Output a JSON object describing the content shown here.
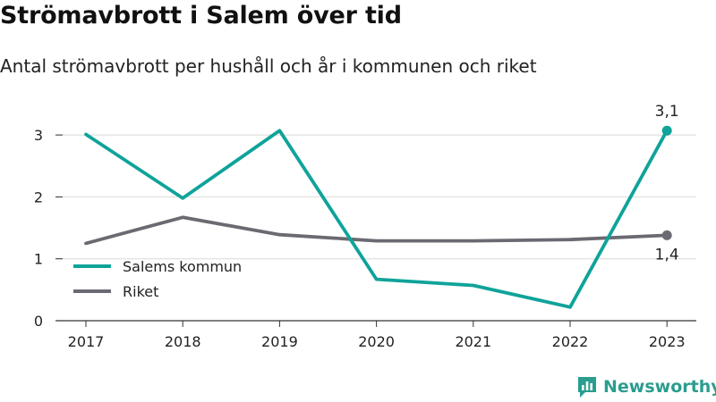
{
  "title": "Strömavbrott i Salem över tid",
  "subtitle": "Antal strömavbrott per hushåll och år i kommunen och riket",
  "brand": {
    "name": "Newsworthy",
    "color": "#2a9d8f"
  },
  "chart_data": {
    "type": "line",
    "categories": [
      "2017",
      "2018",
      "2019",
      "2020",
      "2021",
      "2022",
      "2023"
    ],
    "series": [
      {
        "name": "Salems kommun",
        "color": "#0fa39a",
        "values": [
          3.01,
          1.98,
          3.07,
          0.67,
          0.57,
          0.22,
          3.07
        ]
      },
      {
        "name": "Riket",
        "color": "#6b6a72",
        "values": [
          1.25,
          1.67,
          1.39,
          1.29,
          1.29,
          1.31,
          1.38
        ]
      }
    ],
    "end_labels": [
      "3,1",
      "1,4"
    ],
    "yticks": [
      "0",
      "1",
      "2",
      "3"
    ],
    "ylim": [
      0,
      3.3
    ],
    "grid": true,
    "legend": "bottom-left"
  }
}
